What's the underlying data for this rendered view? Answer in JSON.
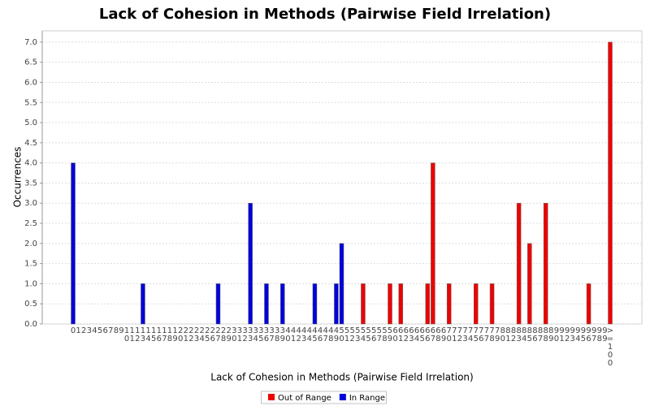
{
  "chart_data": {
    "type": "bar",
    "title": "Lack of Cohesion in Methods (Pairwise Field Irrelation)",
    "x_label": "Lack of Cohesion in Methods (Pairwise Field Irrelation)",
    "y_label": "Occurrences",
    "categories": [
      "0",
      "1",
      "2",
      "3",
      "4",
      "5",
      "6",
      "7",
      "8",
      "9",
      "10",
      "11",
      "12",
      "13",
      "14",
      "15",
      "16",
      "17",
      "18",
      "19",
      "20",
      "21",
      "22",
      "23",
      "24",
      "25",
      "26",
      "27",
      "28",
      "29",
      "30",
      "31",
      "32",
      "33",
      "34",
      "35",
      "36",
      "37",
      "38",
      "39",
      "40",
      "41",
      "42",
      "43",
      "44",
      "45",
      "46",
      "47",
      "48",
      "49",
      "50",
      "51",
      "52",
      "53",
      "54",
      "55",
      "56",
      "57",
      "58",
      "59",
      "60",
      "61",
      "62",
      "63",
      "64",
      "65",
      "66",
      "67",
      "68",
      "69",
      "70",
      "71",
      "72",
      "73",
      "74",
      "75",
      "76",
      "77",
      "78",
      "79",
      "80",
      "81",
      "82",
      "83",
      "84",
      "85",
      "86",
      "87",
      "88",
      "89",
      "90",
      "91",
      "92",
      "93",
      "94",
      "95",
      "96",
      "97",
      "98",
      "99",
      ">=100"
    ],
    "series": [
      {
        "name": "Out of Range",
        "color": "#ee0000",
        "values": [
          0,
          0,
          0,
          0,
          0,
          0,
          0,
          0,
          0,
          0,
          0,
          0,
          0,
          0,
          0,
          0,
          0,
          0,
          0,
          0,
          0,
          0,
          0,
          0,
          0,
          0,
          0,
          0,
          0,
          0,
          0,
          0,
          0,
          0,
          0,
          0,
          0,
          0,
          0,
          0,
          0,
          0,
          0,
          0,
          0,
          0,
          0,
          0,
          0,
          0,
          0,
          0,
          0,
          0,
          1,
          0,
          0,
          0,
          0,
          1,
          0,
          1,
          0,
          0,
          0,
          0,
          1,
          4,
          0,
          0,
          1,
          0,
          0,
          0,
          0,
          1,
          0,
          0,
          1,
          0,
          0,
          0,
          0,
          3,
          0,
          2,
          0,
          0,
          3,
          0,
          0,
          0,
          0,
          0,
          0,
          0,
          1,
          0,
          0,
          0,
          7
        ]
      },
      {
        "name": "In Range",
        "color": "#0000dd",
        "values": [
          4,
          0,
          0,
          0,
          0,
          0,
          0,
          0,
          0,
          0,
          0,
          0,
          0,
          1,
          0,
          0,
          0,
          0,
          0,
          0,
          0,
          0,
          0,
          0,
          0,
          0,
          0,
          1,
          0,
          0,
          0,
          0,
          0,
          3,
          0,
          0,
          1,
          0,
          0,
          1,
          0,
          0,
          0,
          0,
          0,
          1,
          0,
          0,
          0,
          1,
          2,
          0,
          0,
          0,
          0,
          0,
          0,
          0,
          0,
          0,
          0,
          0,
          0,
          0,
          0,
          0,
          0,
          0,
          0,
          0,
          0,
          0,
          0,
          0,
          0,
          0,
          0,
          0,
          0,
          0,
          0,
          0,
          0,
          0,
          0,
          0,
          0,
          0,
          0,
          0,
          0,
          0,
          0,
          0,
          0,
          0,
          0,
          0,
          0,
          0,
          0
        ]
      }
    ],
    "ylim": [
      0,
      7.28
    ],
    "yticks": [
      {
        "value": 0,
        "label": "0.0"
      },
      {
        "value": 0.5,
        "label": "0.5"
      },
      {
        "value": 1,
        "label": "1.0"
      },
      {
        "value": 1.5,
        "label": "1.5"
      },
      {
        "value": 2,
        "label": "2.0"
      },
      {
        "value": 2.5,
        "label": "2.5"
      },
      {
        "value": 3,
        "label": "3.0"
      },
      {
        "value": 3.5,
        "label": "3.5"
      },
      {
        "value": 4,
        "label": "4.0"
      },
      {
        "value": 4.5,
        "label": "4.5"
      },
      {
        "value": 5,
        "label": "5.0"
      },
      {
        "value": 5.5,
        "label": "5.5"
      },
      {
        "value": 6,
        "label": "6.0"
      },
      {
        "value": 6.5,
        "label": "6.5"
      },
      {
        "value": 7,
        "label": "7.0"
      }
    ],
    "grid": true,
    "legend": "bottom"
  }
}
